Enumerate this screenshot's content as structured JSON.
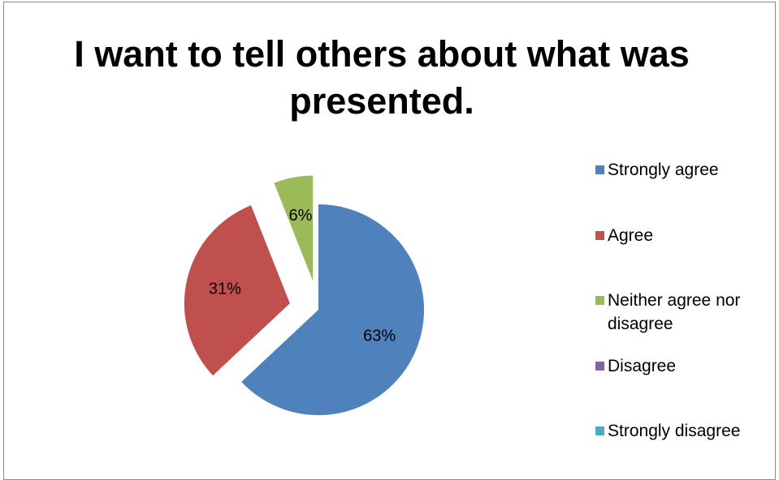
{
  "chart_data": {
    "type": "pie",
    "title": "I want to tell others about what was presented.",
    "categories": [
      "Strongly agree",
      "Agree",
      "Neither agree nor disagree",
      "Disagree",
      "Strongly disagree"
    ],
    "values": [
      63,
      31,
      6,
      0,
      0
    ],
    "labels": [
      "63%",
      "31%",
      "6%",
      "",
      ""
    ],
    "colors": [
      "#4f81bd",
      "#c0504d",
      "#9bbb59",
      "#8064a2",
      "#4bacc6"
    ],
    "exploded": true,
    "legend_position": "right"
  }
}
